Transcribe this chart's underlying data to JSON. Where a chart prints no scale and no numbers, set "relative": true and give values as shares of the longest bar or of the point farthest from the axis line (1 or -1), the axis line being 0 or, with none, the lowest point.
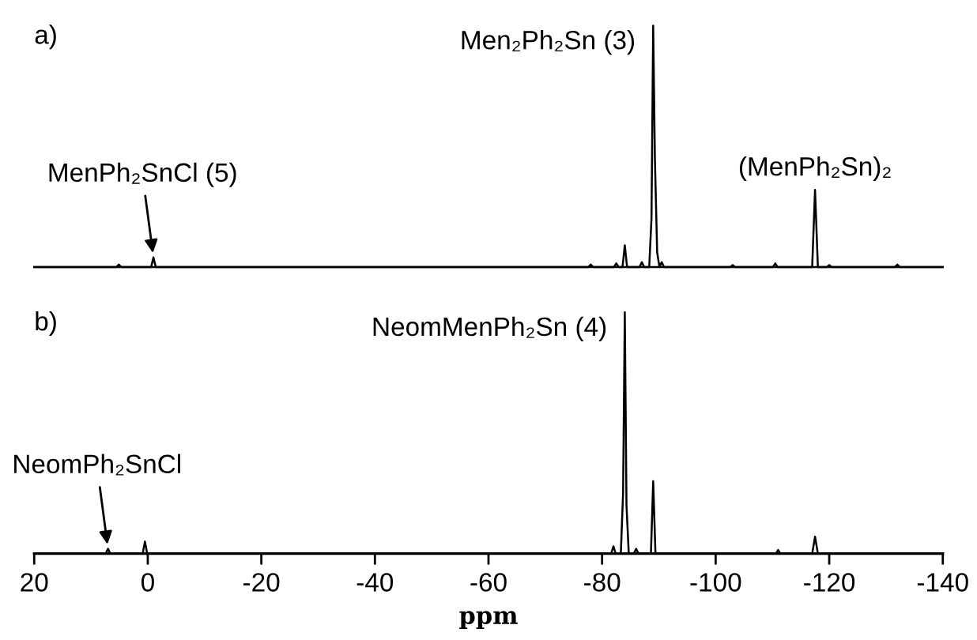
{
  "chart_data": [
    {
      "type": "line",
      "title": "a)",
      "relative": true,
      "xlim": [
        20,
        -140
      ],
      "tick_labels": false,
      "color": "#000000",
      "x": [
        20,
        5.5,
        5.1,
        4.7,
        -0.6,
        -1.0,
        -1.4,
        -77.6,
        -78.0,
        -78.4,
        -82.1,
        -82.5,
        -82.9,
        -83.6,
        -84.0,
        -84.4,
        -86.6,
        -87.0,
        -87.4,
        -88.3,
        -88.7,
        -89.0,
        -89.3,
        -89.7,
        -90.1,
        -90.5,
        -90.9,
        -102.6,
        -103.0,
        -103.4,
        -110.1,
        -110.5,
        -110.9,
        -117.0,
        -117.5,
        -118.0,
        -119.6,
        -120.0,
        -120.4,
        -131.6,
        -132.0,
        -132.4,
        -140
      ],
      "values": [
        0,
        0,
        0.01,
        0,
        0,
        0.04,
        0,
        0,
        0.01,
        0,
        0,
        0.015,
        0,
        0,
        0.09,
        0,
        0,
        0.02,
        0,
        0,
        0.2,
        1,
        0.45,
        0.06,
        0,
        0.02,
        0,
        0,
        0.008,
        0,
        0,
        0.015,
        0,
        0,
        0.32,
        0,
        0,
        0.008,
        0,
        0,
        0.01,
        0,
        0
      ],
      "annotations": [
        {
          "text": "MenPh₂SnCl (5)",
          "x": -1.0,
          "y": 0.04
        },
        {
          "text": "Men₂Ph₂Sn (3)",
          "x": -89.0,
          "y": 1
        },
        {
          "text": "(MenPh₂Sn)₂",
          "x": -117.5,
          "y": 0.32
        }
      ]
    },
    {
      "type": "line",
      "title": "b)",
      "relative": true,
      "xlim": [
        20,
        -140
      ],
      "tick_labels": "x",
      "xlabel": "ppm",
      "color": "#000000",
      "xticks": [
        20,
        0,
        -20,
        -40,
        -60,
        -80,
        -100,
        -120,
        -140
      ],
      "x": [
        20,
        7.4,
        7.0,
        6.6,
        0.9,
        0.5,
        0.1,
        -81.6,
        -82.0,
        -82.4,
        -83.3,
        -83.7,
        -84.0,
        -84.3,
        -84.7,
        -85.6,
        -86.0,
        -86.4,
        -88.6,
        -89.0,
        -89.4,
        -110.6,
        -111.0,
        -111.4,
        -117.0,
        -117.5,
        -118.0,
        -140
      ],
      "values": [
        0,
        0,
        0.02,
        0,
        0,
        0.05,
        0,
        0,
        0.03,
        0,
        0,
        0.25,
        1,
        0.2,
        0,
        0,
        0.02,
        0,
        0,
        0.3,
        0,
        0,
        0.015,
        0,
        0,
        0.07,
        0,
        0
      ],
      "annotations": [
        {
          "text": "NeomPh₂SnCl",
          "x": 7.0,
          "y": 0.02
        },
        {
          "text": "NeomMenPh₂Sn (4)",
          "x": -84.0,
          "y": 1
        }
      ]
    }
  ]
}
